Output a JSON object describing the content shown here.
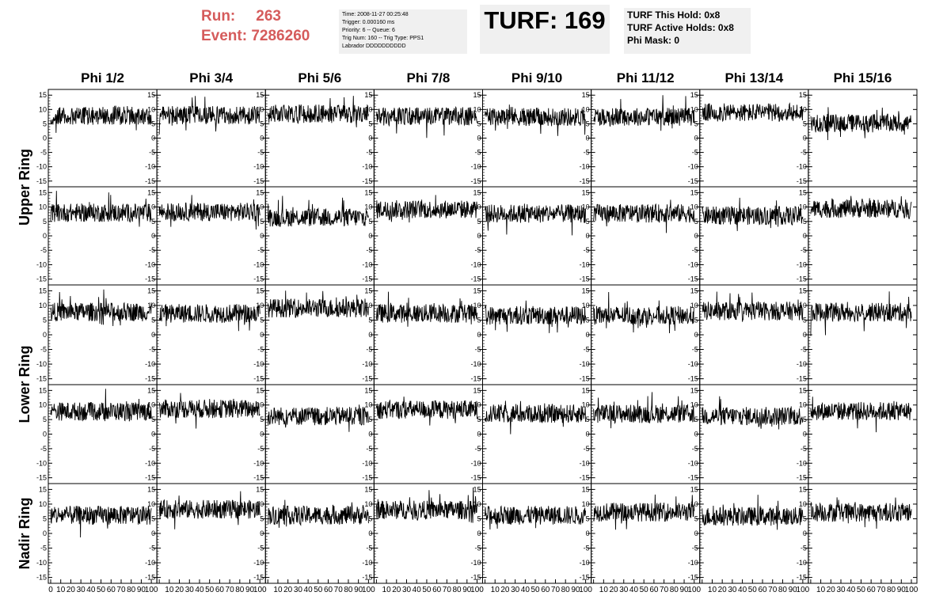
{
  "header": {
    "run_label": "Run:",
    "run_value": "263",
    "event_label": "Event:",
    "event_value": "7286260",
    "info_lines": [
      "Time: 2008-11-27 00:25:48",
      "Trigger: 0.000160 ms",
      "Priority: 6 -- Queue: 6",
      "Trig Num: 160 -- Trig Type: PPS1",
      "Labrador DDDDDDDDDD"
    ],
    "turf_text": "TURF: 169",
    "turf_lines": [
      "TURF This Hold: 0x8",
      "TURF Active Holds: 0x8",
      "Phi Mask: 0"
    ]
  },
  "columns": [
    "Phi 1/2",
    "Phi 3/4",
    "Phi 5/6",
    "Phi 7/8",
    "Phi 9/10",
    "Phi 11/12",
    "Phi 13/14",
    "Phi 15/16"
  ],
  "ring_labels": [
    "Upper Ring",
    "Lower Ring",
    "Nadir Ring"
  ],
  "chart_data": {
    "type": "line",
    "panels_rows": 5,
    "panels_cols": 8,
    "xlim": [
      0,
      100
    ],
    "ylim": [
      -17,
      17
    ],
    "x_ticks": [
      "0",
      "10",
      "20",
      "30",
      "40",
      "50",
      "60",
      "70",
      "80",
      "90",
      "100"
    ],
    "y_ticks": [
      "15",
      "10",
      "5",
      "0",
      "-5",
      "-10",
      "-15"
    ],
    "baselines": [
      [
        7.8,
        8.0,
        8.5,
        7.6,
        7.4,
        7.5,
        8.9,
        5.2
      ],
      [
        8.0,
        8.3,
        6.4,
        9.2,
        7.7,
        7.8,
        7.0,
        9.4
      ],
      [
        7.8,
        7.3,
        9.1,
        7.3,
        6.6,
        6.6,
        8.1,
        7.7
      ],
      [
        7.8,
        8.7,
        6.2,
        8.4,
        7.0,
        7.0,
        6.2,
        7.9
      ],
      [
        6.2,
        8.2,
        6.2,
        8.0,
        6.2,
        7.3,
        5.8,
        7.2
      ]
    ],
    "noise_amplitude": 3.2,
    "series_color": "#000000"
  }
}
